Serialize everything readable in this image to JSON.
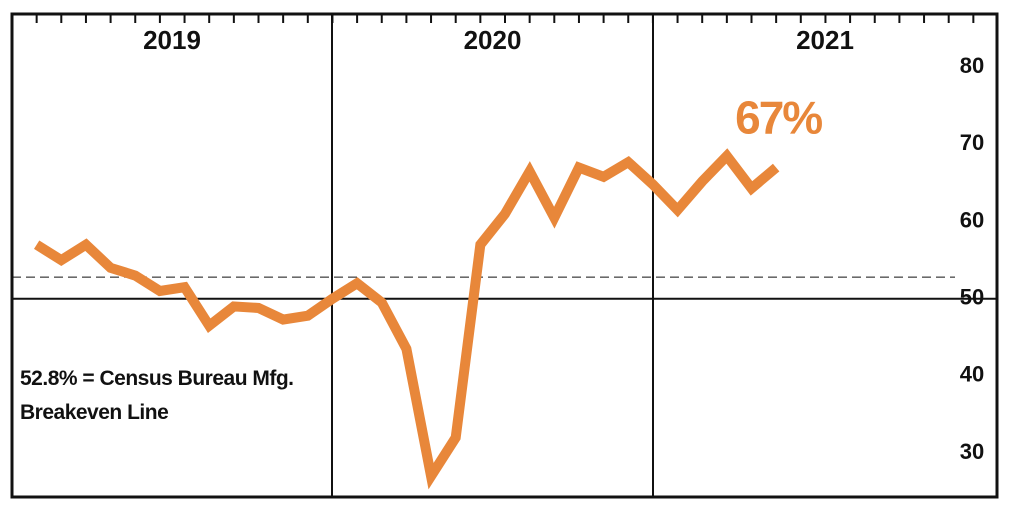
{
  "chart_data": {
    "type": "line",
    "categories": [
      null,
      null,
      null,
      null,
      null,
      null,
      null,
      null,
      null,
      null,
      null,
      null,
      null,
      null,
      null,
      null,
      null,
      null,
      null,
      null,
      null,
      null,
      null,
      null,
      null,
      null,
      null,
      null,
      null,
      null,
      null
    ],
    "year_labels": [
      "2019",
      "2020",
      "2021"
    ],
    "series": [
      {
        "color": "#e8873a",
        "values": [
          57,
          55,
          57,
          54,
          53,
          51,
          51.5,
          46.5,
          49,
          48.8,
          47.3,
          47.8,
          50,
          52,
          49.5,
          43.5,
          27,
          32,
          57,
          61,
          66.5,
          60.5,
          67,
          65.8,
          67.7,
          64.8,
          61.5,
          65.2,
          68.5,
          64.3,
          67
        ],
        "value_labels": [
          null,
          null,
          null,
          null,
          null,
          null,
          null,
          null,
          null,
          null,
          null,
          null,
          null,
          null,
          null,
          null,
          null,
          null,
          null,
          null,
          null,
          null,
          null,
          null,
          null,
          null,
          null,
          null,
          null,
          null,
          "67%"
        ]
      }
    ],
    "ylim": [
      24.3,
      86.9
    ],
    "yticks": [
      30,
      40,
      50,
      60,
      70,
      80
    ],
    "baseline": 50,
    "reference_line": {
      "value": 52.8,
      "label": "52.8% = Census Bureau Mfg. Breakeven Line"
    }
  }
}
